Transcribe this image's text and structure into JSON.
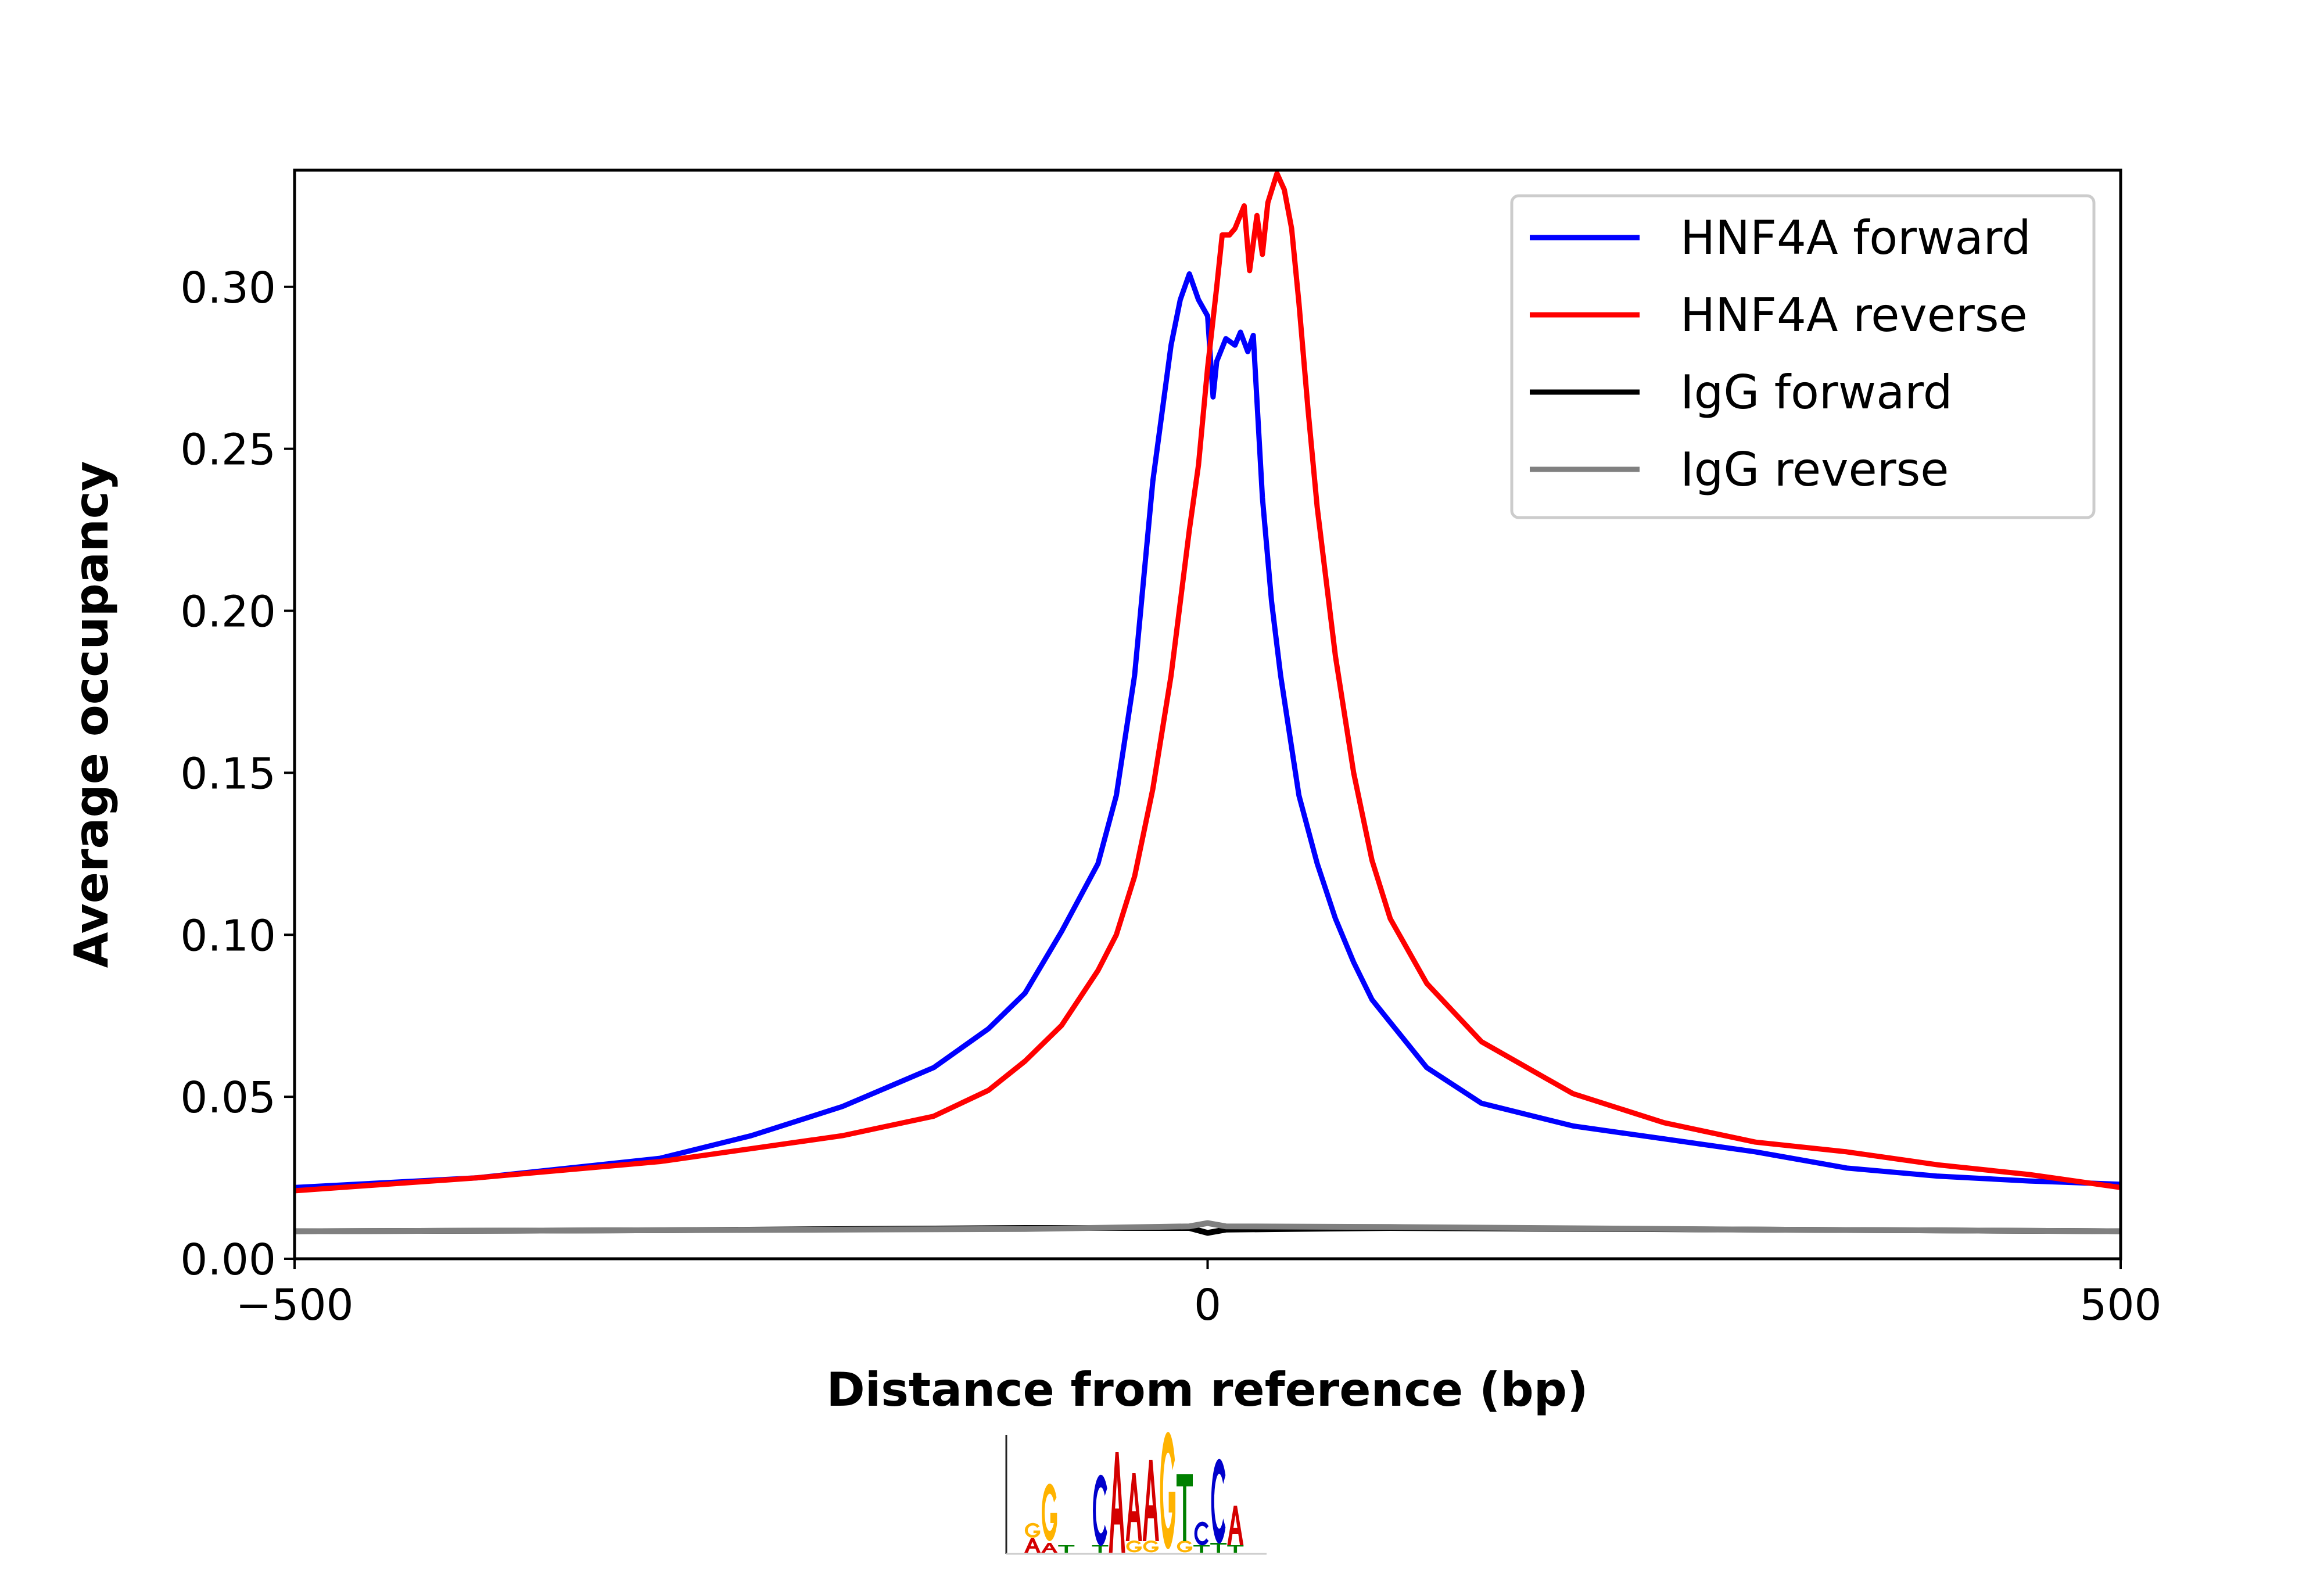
{
  "chart_data": {
    "type": "line",
    "title": "",
    "xlabel": "Distance from reference (bp)",
    "ylabel": "Average occupancy",
    "xlim": [
      -500,
      500
    ],
    "ylim": [
      0,
      0.336
    ],
    "x_ticks": [
      -500,
      0,
      500
    ],
    "x_tick_labels": [
      "−500",
      "0",
      "500"
    ],
    "y_ticks": [
      0,
      0.05,
      0.1,
      0.15,
      0.2,
      0.25,
      0.3
    ],
    "y_tick_labels": [
      "0.00",
      "0.05",
      "0.10",
      "0.15",
      "0.20",
      "0.25",
      "0.30"
    ],
    "grid": false,
    "legend_position": "top-right",
    "series": [
      {
        "name": "HNF4A forward",
        "color": "#0000ff",
        "x": [
          -500,
          -400,
          -300,
          -250,
          -200,
          -150,
          -120,
          -100,
          -80,
          -60,
          -50,
          -40,
          -30,
          -20,
          -15,
          -10,
          -5,
          0,
          3,
          5,
          10,
          15,
          18,
          22,
          25,
          30,
          35,
          40,
          50,
          60,
          70,
          80,
          90,
          100,
          120,
          150,
          200,
          250,
          300,
          350,
          400,
          450,
          500
        ],
        "y": [
          0.022,
          0.025,
          0.031,
          0.038,
          0.047,
          0.059,
          0.071,
          0.082,
          0.101,
          0.122,
          0.143,
          0.18,
          0.24,
          0.282,
          0.296,
          0.304,
          0.296,
          0.291,
          0.266,
          0.277,
          0.284,
          0.282,
          0.286,
          0.28,
          0.285,
          0.235,
          0.203,
          0.18,
          0.143,
          0.122,
          0.105,
          0.0915,
          0.08,
          0.073,
          0.059,
          0.048,
          0.041,
          0.037,
          0.033,
          0.028,
          0.0255,
          0.024,
          0.023
        ]
      },
      {
        "name": "HNF4A reverse",
        "color": "#ff0000",
        "x": [
          -500,
          -400,
          -300,
          -250,
          -200,
          -150,
          -120,
          -100,
          -80,
          -60,
          -50,
          -40,
          -30,
          -20,
          -10,
          -5,
          0,
          5,
          8,
          12,
          15,
          20,
          23,
          27,
          30,
          33,
          38,
          42,
          46,
          50,
          55,
          60,
          70,
          80,
          90,
          100,
          120,
          150,
          200,
          250,
          300,
          350,
          400,
          450,
          500
        ],
        "y": [
          0.021,
          0.025,
          0.03,
          0.034,
          0.038,
          0.044,
          0.052,
          0.061,
          0.072,
          0.089,
          0.1,
          0.118,
          0.145,
          0.18,
          0.225,
          0.245,
          0.275,
          0.3,
          0.316,
          0.316,
          0.318,
          0.325,
          0.305,
          0.322,
          0.31,
          0.326,
          0.335,
          0.33,
          0.318,
          0.295,
          0.262,
          0.232,
          0.186,
          0.15,
          0.123,
          0.105,
          0.085,
          0.067,
          0.051,
          0.042,
          0.036,
          0.033,
          0.029,
          0.026,
          0.022
        ]
      },
      {
        "name": "IgG forward",
        "color": "#000000",
        "x": [
          -500,
          -300,
          -100,
          -10,
          0,
          10,
          100,
          300,
          500
        ],
        "y": [
          0.0085,
          0.0088,
          0.0095,
          0.0095,
          0.008,
          0.009,
          0.0095,
          0.009,
          0.0085
        ]
      },
      {
        "name": "IgG reverse",
        "color": "#808080",
        "x": [
          -500,
          -300,
          -100,
          -10,
          0,
          10,
          100,
          300,
          500
        ],
        "y": [
          0.0085,
          0.0088,
          0.0092,
          0.01,
          0.011,
          0.01,
          0.0098,
          0.009,
          0.0085
        ]
      }
    ]
  },
  "motif_logo": {
    "lettering": "GGCAAAGTCCA",
    "colors": {
      "A": "#d40000",
      "C": "#0000cc",
      "G": "#ffb300",
      "T": "#008000"
    },
    "columns": [
      [],
      [
        [
          "A",
          0.25
        ],
        [
          "G",
          0.25
        ]
      ],
      [
        [
          "A",
          0.17
        ],
        [
          "G",
          0.97
        ]
      ],
      [
        [
          "T",
          0.13
        ]
      ],
      [],
      [
        [
          "T",
          0.13
        ],
        [
          "C",
          1.2
        ]
      ],
      [
        [
          "A",
          1.73
        ]
      ],
      [
        [
          "G",
          0.2
        ],
        [
          "A",
          1.17
        ]
      ],
      [
        [
          "G",
          0.2
        ],
        [
          "A",
          1.4
        ]
      ],
      [
        [
          "G",
          1.98
        ]
      ],
      [
        [
          "G",
          0.2
        ],
        [
          "T",
          1.15
        ]
      ],
      [
        [
          "T",
          0.13
        ],
        [
          "C",
          0.4
        ]
      ],
      [
        [
          "T",
          0.17
        ],
        [
          "C",
          1.43
        ]
      ],
      [
        [
          "T",
          0.13
        ],
        [
          "A",
          0.68
        ]
      ],
      []
    ]
  }
}
